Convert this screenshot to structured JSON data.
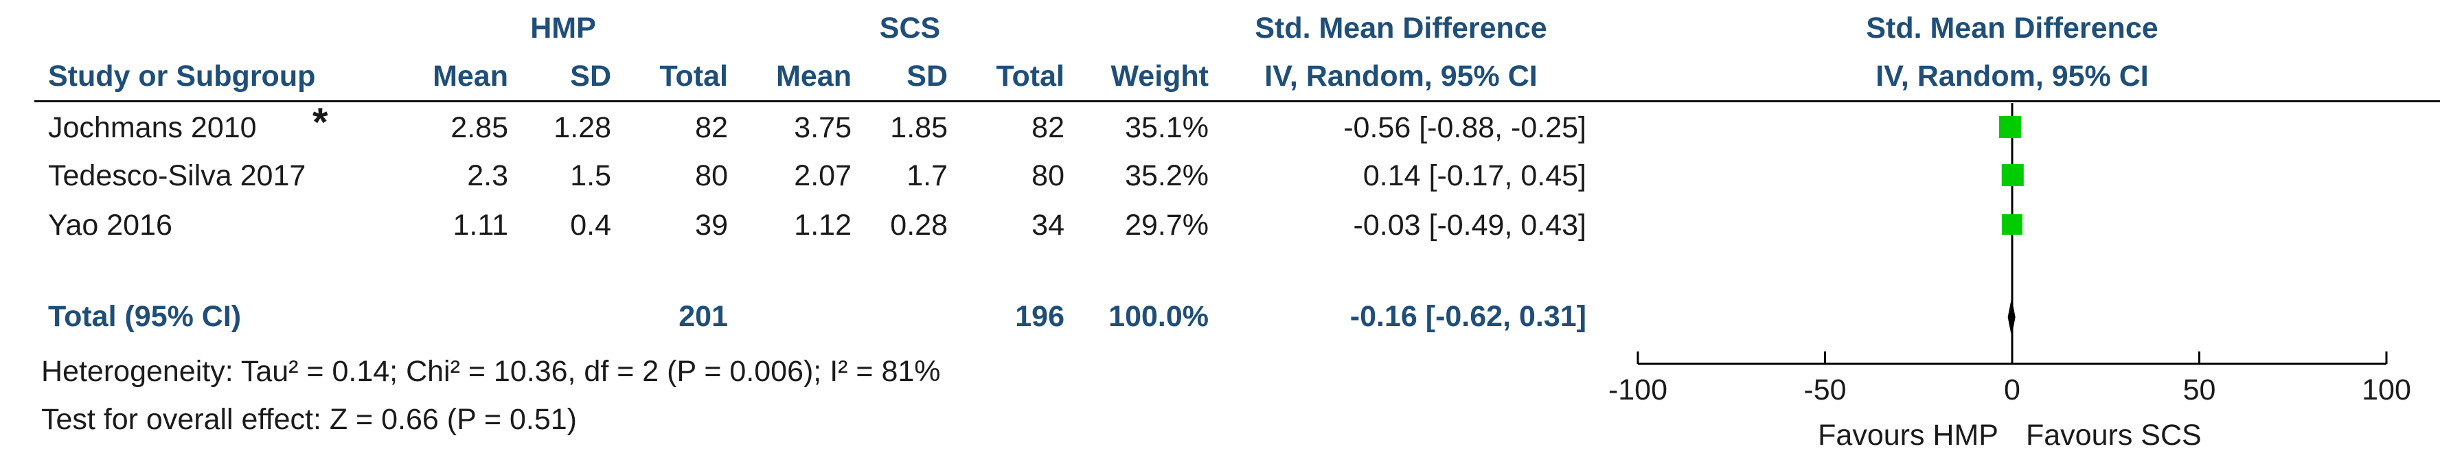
{
  "headers": {
    "group1": "HMP",
    "group2": "SCS",
    "effect": "Std. Mean Difference",
    "study": "Study or Subgroup",
    "mean": "Mean",
    "sd": "SD",
    "total": "Total",
    "weight": "Weight",
    "method": "IV, Random, 95% CI",
    "plot_effect": "Std. Mean Difference",
    "plot_method": "IV, Random, 95% CI"
  },
  "studies": [
    {
      "name": "Jochmans 2010",
      "marker": "*",
      "m1": "2.85",
      "sd1": "1.28",
      "n1": "82",
      "m2": "3.75",
      "sd2": "1.85",
      "n2": "82",
      "weight": "35.1%",
      "ci": "-0.56 [-0.88, -0.25]"
    },
    {
      "name": "Tedesco-Silva 2017",
      "marker": "",
      "m1": "2.3",
      "sd1": "1.5",
      "n1": "80",
      "m2": "2.07",
      "sd2": "1.7",
      "n2": "80",
      "weight": "35.2%",
      "ci": "0.14 [-0.17, 0.45]"
    },
    {
      "name": "Yao 2016",
      "marker": "",
      "m1": "1.11",
      "sd1": "0.4",
      "n1": "39",
      "m2": "1.12",
      "sd2": "0.28",
      "n2": "34",
      "weight": "29.7%",
      "ci": "-0.03 [-0.49, 0.43]"
    }
  ],
  "total": {
    "label": "Total (95% CI)",
    "n1": "201",
    "n2": "196",
    "weight": "100.0%",
    "ci": "-0.16 [-0.62, 0.31]"
  },
  "heterogeneity": "Heterogeneity: Tau² = 0.14; Chi² = 10.36, df = 2 (P = 0.006); I² = 81%",
  "overall_effect": "Test for overall effect: Z = 0.66 (P = 0.51)",
  "colors": {
    "header": "#1f4e79",
    "square": "#00cc00",
    "text": "#1a1a1a"
  },
  "chart_data": {
    "type": "scatter",
    "title": "",
    "xlim": [
      -100,
      100
    ],
    "x_ticks": [
      "-100",
      "-50",
      "0",
      "50",
      "100"
    ],
    "favours_left": "Favours HMP",
    "favours_right": "Favours SCS",
    "studies": [
      {
        "name": "Jochmans 2010",
        "smd": -0.56,
        "ci_low": -0.88,
        "ci_high": -0.25,
        "weight": 35.1
      },
      {
        "name": "Tedesco-Silva 2017",
        "smd": 0.14,
        "ci_low": -0.17,
        "ci_high": 0.45,
        "weight": 35.2
      },
      {
        "name": "Yao 2016",
        "smd": -0.03,
        "ci_low": -0.49,
        "ci_high": 0.43,
        "weight": 29.7
      }
    ],
    "pooled": {
      "smd": -0.16,
      "ci_low": -0.62,
      "ci_high": 0.31
    }
  }
}
